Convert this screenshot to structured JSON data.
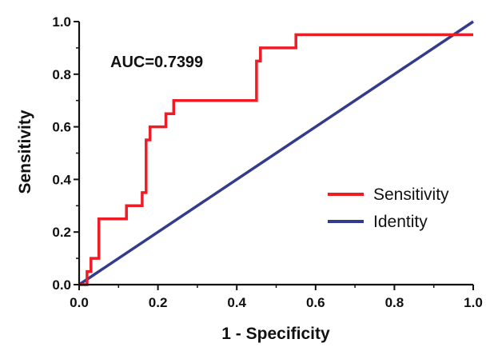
{
  "chart_data": {
    "type": "line",
    "title": "",
    "xlabel": "1 - Specificity",
    "ylabel": "Sensitivity",
    "xlim": [
      0.0,
      1.0
    ],
    "ylim": [
      0.0,
      1.0
    ],
    "xticks": [
      "0.0",
      "0.2",
      "0.4",
      "0.6",
      "0.8",
      "1.0"
    ],
    "yticks": [
      "0.0",
      "0.2",
      "0.4",
      "0.6",
      "0.8",
      "1.0"
    ],
    "grid": false,
    "legend_position": "right",
    "annotation": "AUC=0.7399",
    "series": [
      {
        "name": "Sensitivity",
        "color": "#ee1c25",
        "x": [
          0.0,
          0.02,
          0.02,
          0.03,
          0.03,
          0.05,
          0.05,
          0.12,
          0.12,
          0.16,
          0.16,
          0.17,
          0.17,
          0.18,
          0.18,
          0.22,
          0.22,
          0.24,
          0.24,
          0.45,
          0.45,
          0.46,
          0.46,
          0.55,
          0.55,
          1.0
        ],
        "y": [
          0.0,
          0.0,
          0.05,
          0.05,
          0.1,
          0.1,
          0.25,
          0.25,
          0.3,
          0.3,
          0.35,
          0.35,
          0.55,
          0.55,
          0.6,
          0.6,
          0.65,
          0.65,
          0.7,
          0.7,
          0.85,
          0.85,
          0.9,
          0.9,
          0.95,
          0.95
        ]
      },
      {
        "name": "Identity",
        "color": "#353b8c",
        "x": [
          0.0,
          1.0
        ],
        "y": [
          0.0,
          1.0
        ]
      }
    ]
  }
}
